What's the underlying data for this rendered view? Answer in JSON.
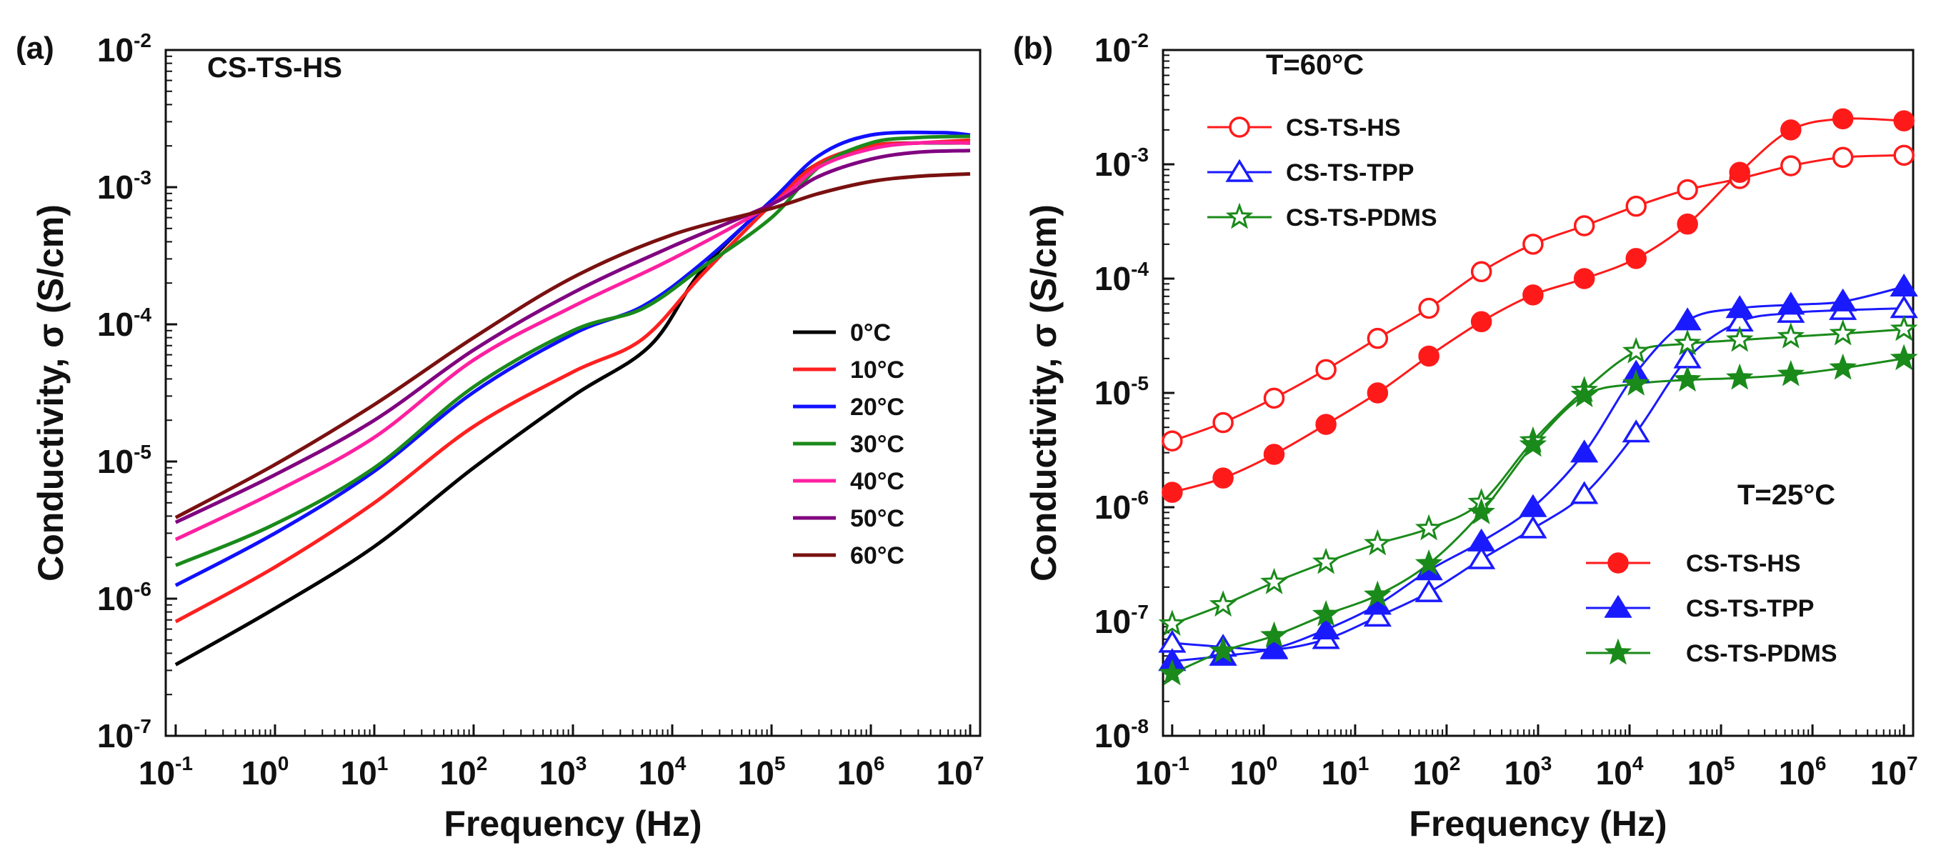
{
  "figure": {
    "panels": [
      "(a)",
      "(b)"
    ]
  },
  "chart_data": [
    {
      "panel": "(a)",
      "type": "line",
      "title": "CS-TS-HS",
      "xlabel": "Frequency (Hz)",
      "ylabel": "Conductivity, σ (S/cm)",
      "xscale": "log",
      "yscale": "log",
      "xlim": [
        0.0794,
        12600000.0
      ],
      "ylim": [
        1e-07,
        0.01
      ],
      "xticks": {
        "base": "10",
        "exps": [
          "-1",
          "0",
          "1",
          "2",
          "3",
          "4",
          "5",
          "6",
          "7"
        ],
        "values": [
          0.1,
          1,
          10,
          100,
          1000,
          10000,
          100000,
          1000000,
          10000000
        ]
      },
      "yticks": {
        "base": "10",
        "exps": [
          "-7",
          "-6",
          "-5",
          "-4",
          "-3",
          "-2"
        ],
        "values": [
          1e-07,
          1e-06,
          1e-05,
          0.0001,
          0.001,
          0.01
        ]
      },
      "legend_position": "center-right",
      "series": [
        {
          "name": "0°C",
          "color": "#000000",
          "x": [
            0.1,
            1,
            10,
            100,
            1000,
            6000,
            20000,
            100000,
            300000,
            1000000,
            3000000,
            10000000
          ],
          "y": [
            3.3e-07,
            8.5e-07,
            2.4e-06,
            9e-06,
            3e-05,
            7e-05,
            0.00025,
            0.0008,
            0.0015,
            0.002,
            0.0021,
            0.0021
          ]
        },
        {
          "name": "10°C",
          "color": "#ff2020",
          "x": [
            0.1,
            1,
            10,
            100,
            1000,
            5000,
            20000,
            100000,
            300000,
            1000000,
            3000000,
            10000000
          ],
          "y": [
            6.8e-07,
            1.7e-06,
            5e-06,
            1.8e-05,
            4.5e-05,
            7.8e-05,
            0.00023,
            0.00075,
            0.0015,
            0.002,
            0.0021,
            0.0022
          ]
        },
        {
          "name": "20°C",
          "color": "#1010ff",
          "x": [
            0.1,
            1,
            10,
            100,
            1000,
            5000,
            20000,
            100000,
            300000,
            1000000,
            5000000,
            10000000
          ],
          "y": [
            1.25e-06,
            3e-06,
            8.5e-06,
            3.2e-05,
            8.5e-05,
            0.000135,
            0.00028,
            0.0008,
            0.0017,
            0.0024,
            0.0025,
            0.0024
          ]
        },
        {
          "name": "30°C",
          "color": "#1a8a1a",
          "x": [
            0.1,
            1,
            10,
            100,
            1000,
            5000,
            20000,
            100000,
            300000,
            1000000,
            3000000,
            10000000
          ],
          "y": [
            1.75e-06,
            3.5e-06,
            9e-06,
            3.5e-05,
            9e-05,
            0.00013,
            0.00026,
            0.0006,
            0.0014,
            0.0021,
            0.0023,
            0.00235
          ]
        },
        {
          "name": "40°C",
          "color": "#ff20a0",
          "x": [
            0.1,
            1,
            10,
            100,
            1000,
            10000,
            100000,
            300000,
            1000000,
            3000000,
            10000000
          ],
          "y": [
            2.7e-06,
            6e-06,
            1.5e-05,
            5.5e-05,
            0.000135,
            0.0003,
            0.00075,
            0.0014,
            0.0019,
            0.0021,
            0.0021
          ]
        },
        {
          "name": "50°C",
          "color": "#800080",
          "x": [
            0.1,
            1,
            10,
            100,
            1000,
            10000,
            100000,
            300000,
            1000000,
            3000000,
            10000000
          ],
          "y": [
            3.6e-06,
            8e-06,
            2e-05,
            6.5e-05,
            0.00017,
            0.00037,
            0.00075,
            0.0012,
            0.0016,
            0.0018,
            0.00185
          ]
        },
        {
          "name": "60°C",
          "color": "#7a1010",
          "x": [
            0.1,
            1,
            10,
            100,
            1000,
            10000,
            100000,
            300000,
            1000000,
            3000000,
            10000000
          ],
          "y": [
            3.9e-06,
            9.5e-06,
            2.6e-05,
            8e-05,
            0.00022,
            0.00045,
            0.0007,
            0.0009,
            0.0011,
            0.0012,
            0.00125
          ]
        }
      ]
    },
    {
      "panel": "(b)",
      "type": "line",
      "xlabel": "Frequency (Hz)",
      "ylabel": "Conductivity, σ (S/cm)",
      "xscale": "log",
      "yscale": "log",
      "xlim": [
        0.0794,
        12600000.0
      ],
      "ylim": [
        1e-08,
        0.01
      ],
      "xticks": {
        "base": "10",
        "exps": [
          "-1",
          "0",
          "1",
          "2",
          "3",
          "4",
          "5",
          "6",
          "7"
        ],
        "values": [
          0.1,
          1,
          10,
          100,
          1000,
          10000,
          100000,
          1000000,
          10000000
        ]
      },
      "yticks": {
        "base": "10",
        "exps": [
          "-8",
          "-7",
          "-6",
          "-5",
          "-4",
          "-3",
          "-2"
        ],
        "values": [
          1e-08,
          1e-07,
          1e-06,
          1e-05,
          0.0001,
          0.001,
          0.01
        ]
      },
      "annotations": [
        {
          "text": "T=60°C",
          "position": "top-left"
        },
        {
          "text": "T=25°C",
          "position": "middle-right"
        }
      ],
      "legends": [
        {
          "group": "T=60°C",
          "position": "top-left",
          "items": [
            "CS-TS-HS",
            "CS-TS-TPP",
            "CS-TS-PDMS"
          ]
        },
        {
          "group": "T=25°C",
          "position": "bottom-right",
          "items": [
            "CS-TS-HS",
            "CS-TS-TPP",
            "CS-TS-PDMS"
          ]
        }
      ],
      "x_points": [
        0.1,
        0.36,
        1.3,
        4.8,
        17.6,
        64,
        240,
        880,
        3200,
        11800,
        43000,
        160000,
        580000,
        2150000,
        10000000
      ],
      "series": [
        {
          "name": "CS-TS-HS",
          "group": "T=60°C",
          "marker": "circle",
          "filled": false,
          "color": "#ff1a1a",
          "y": [
            3.8e-06,
            5.5e-06,
            9e-06,
            1.6e-05,
            3e-05,
            5.5e-05,
            0.000115,
            0.0002,
            0.00029,
            0.00043,
            0.0006,
            0.00075,
            0.00097,
            0.00115,
            0.0012
          ]
        },
        {
          "name": "CS-TS-TPP",
          "group": "T=60°C",
          "marker": "triangle",
          "filled": false,
          "color": "#1a1aff",
          "y": [
            6.5e-08,
            6e-08,
            5.7e-08,
            7e-08,
            1.1e-07,
            1.8e-07,
            3.5e-07,
            6.5e-07,
            1.3e-06,
            4.5e-06,
            2e-05,
            4.2e-05,
            5e-05,
            5.3e-05,
            5.5e-05
          ]
        },
        {
          "name": "CS-TS-PDMS",
          "group": "T=60°C",
          "marker": "star",
          "filled": false,
          "color": "#1a8a1a",
          "y": [
            9.5e-08,
            1.4e-07,
            2.2e-07,
            3.3e-07,
            4.8e-07,
            6.5e-07,
            1.1e-06,
            3.8e-06,
            1.05e-05,
            2.3e-05,
            2.7e-05,
            2.9e-05,
            3.1e-05,
            3.3e-05,
            3.6e-05
          ]
        },
        {
          "name": "CS-TS-HS",
          "group": "T=25°C",
          "marker": "circle",
          "filled": true,
          "color": "#ff1a1a",
          "y": [
            1.35e-06,
            1.8e-06,
            2.9e-06,
            5.3e-06,
            1e-05,
            2.1e-05,
            4.2e-05,
            7.2e-05,
            0.0001,
            0.00015,
            0.0003,
            0.00085,
            0.002,
            0.0025,
            0.0024
          ]
        },
        {
          "name": "CS-TS-TPP",
          "group": "T=25°C",
          "marker": "triangle",
          "filled": true,
          "color": "#1a1aff",
          "y": [
            4.5e-08,
            5e-08,
            5.8e-08,
            8.5e-08,
            1.4e-07,
            2.8e-07,
            5e-07,
            1e-06,
            3e-06,
            1.5e-05,
            4.3e-05,
            5.5e-05,
            5.9e-05,
            6.3e-05,
            8.5e-05
          ]
        },
        {
          "name": "CS-TS-PDMS",
          "group": "T=25°C",
          "marker": "star",
          "filled": true,
          "color": "#1a8a1a",
          "y": [
            3.5e-08,
            5.5e-08,
            7.5e-08,
            1.15e-07,
            1.7e-07,
            3.2e-07,
            9e-07,
            3.5e-06,
            9.5e-06,
            1.2e-05,
            1.3e-05,
            1.35e-05,
            1.45e-05,
            1.65e-05,
            2e-05
          ]
        }
      ]
    }
  ]
}
